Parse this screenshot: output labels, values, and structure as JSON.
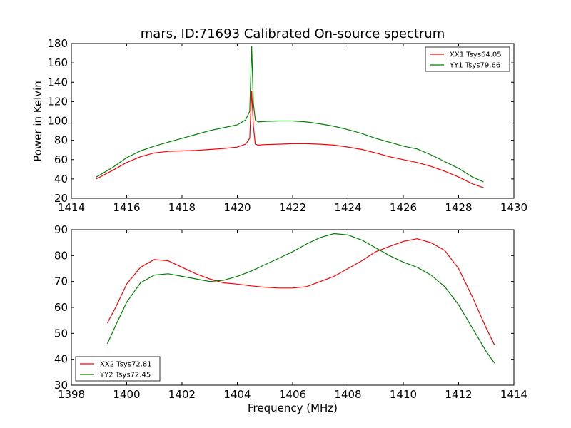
{
  "chart_data": [
    {
      "type": "line",
      "title": "mars, ID:71693 Calibrated On-source spectrum",
      "xlabel": "",
      "ylabel": "Power in Kelvin",
      "xlim": [
        1414,
        1430
      ],
      "ylim": [
        20,
        180
      ],
      "xticks": [
        "1414",
        "1416",
        "1418",
        "1420",
        "1422",
        "1424",
        "1426",
        "1428",
        "1430"
      ],
      "yticks": [
        "20",
        "40",
        "60",
        "80",
        "100",
        "120",
        "140",
        "160",
        "180"
      ],
      "grid": false,
      "legend_position": "top-right",
      "series": [
        {
          "name": "XX1 Tsys64.05",
          "color": "#ff0000",
          "x": [
            1414.9,
            1415.5,
            1416.0,
            1416.5,
            1417.0,
            1417.5,
            1418.0,
            1418.5,
            1419.0,
            1419.5,
            1420.0,
            1420.3,
            1420.45,
            1420.52,
            1420.58,
            1420.65,
            1420.75,
            1421.0,
            1421.5,
            1422.0,
            1422.5,
            1423.0,
            1423.5,
            1424.0,
            1424.5,
            1425.0,
            1425.5,
            1426.0,
            1426.5,
            1427.0,
            1427.5,
            1428.0,
            1428.5,
            1428.9
          ],
          "y": [
            40,
            49,
            57,
            63,
            67,
            68.5,
            69,
            69.5,
            70.5,
            71.5,
            73,
            76,
            82,
            131,
            95,
            76,
            75,
            75.5,
            76,
            76.5,
            76.5,
            76,
            75,
            73,
            70.5,
            67,
            63,
            60,
            57,
            53,
            48,
            42,
            35,
            31
          ]
        },
        {
          "name": "YY1 Tsys79.66",
          "color": "#008000",
          "x": [
            1414.9,
            1415.5,
            1416.0,
            1416.5,
            1417.0,
            1417.5,
            1418.0,
            1418.5,
            1419.0,
            1419.5,
            1420.0,
            1420.3,
            1420.45,
            1420.52,
            1420.58,
            1420.65,
            1420.75,
            1421.0,
            1421.5,
            1422.0,
            1422.5,
            1423.0,
            1423.5,
            1424.0,
            1424.5,
            1425.0,
            1425.5,
            1426.0,
            1426.5,
            1427.0,
            1427.5,
            1428.0,
            1428.5,
            1428.9
          ],
          "y": [
            42,
            52,
            62,
            69,
            74,
            78,
            82,
            86,
            90,
            93,
            96,
            101,
            110,
            177,
            118,
            101,
            99,
            99.5,
            100,
            100,
            99,
            97,
            94.5,
            91,
            87,
            82,
            78,
            74,
            71,
            65,
            58,
            51,
            42,
            37
          ]
        }
      ]
    },
    {
      "type": "line",
      "title": "",
      "xlabel": "Frequency (MHz)",
      "ylabel": "",
      "xlim": [
        1398,
        1414
      ],
      "ylim": [
        30,
        90
      ],
      "xticks": [
        "1398",
        "1400",
        "1402",
        "1404",
        "1406",
        "1408",
        "1410",
        "1412",
        "1414"
      ],
      "yticks": [
        "30",
        "40",
        "50",
        "60",
        "70",
        "80",
        "90"
      ],
      "grid": false,
      "legend_position": "bottom-left",
      "series": [
        {
          "name": "XX2 Tsys72.81",
          "color": "#ff0000",
          "x": [
            1399.3,
            1399.6,
            1400.0,
            1400.5,
            1401.0,
            1401.5,
            1402.0,
            1402.5,
            1403.0,
            1403.5,
            1404.0,
            1404.5,
            1405.0,
            1405.5,
            1406.0,
            1406.5,
            1407.0,
            1407.5,
            1408.0,
            1408.5,
            1409.0,
            1409.5,
            1410.0,
            1410.5,
            1411.0,
            1411.5,
            1412.0,
            1412.5,
            1413.0,
            1413.3
          ],
          "y": [
            54,
            60,
            69,
            75.5,
            78.5,
            78,
            75.5,
            73,
            71,
            69.5,
            69,
            68.3,
            67.8,
            67.5,
            67.5,
            68,
            70,
            72,
            75,
            78,
            81.5,
            83.5,
            85.5,
            86.5,
            85,
            82,
            75,
            64,
            52,
            45.5
          ]
        },
        {
          "name": "YY2 Tsys72.45",
          "color": "#008000",
          "x": [
            1399.3,
            1399.6,
            1400.0,
            1400.5,
            1401.0,
            1401.5,
            1402.0,
            1402.5,
            1403.0,
            1403.5,
            1404.0,
            1404.5,
            1405.0,
            1405.5,
            1406.0,
            1406.5,
            1407.0,
            1407.5,
            1408.0,
            1408.5,
            1409.0,
            1409.5,
            1410.0,
            1410.5,
            1411.0,
            1411.5,
            1412.0,
            1412.5,
            1413.0,
            1413.3
          ],
          "y": [
            46,
            53,
            62,
            69.5,
            72.5,
            73,
            72,
            71,
            70,
            70.5,
            72,
            74,
            76.5,
            79,
            81.5,
            84.5,
            87,
            88.5,
            88,
            86,
            83,
            80,
            77.5,
            75.5,
            72.5,
            68,
            61,
            52,
            43,
            38.5
          ]
        }
      ]
    }
  ]
}
